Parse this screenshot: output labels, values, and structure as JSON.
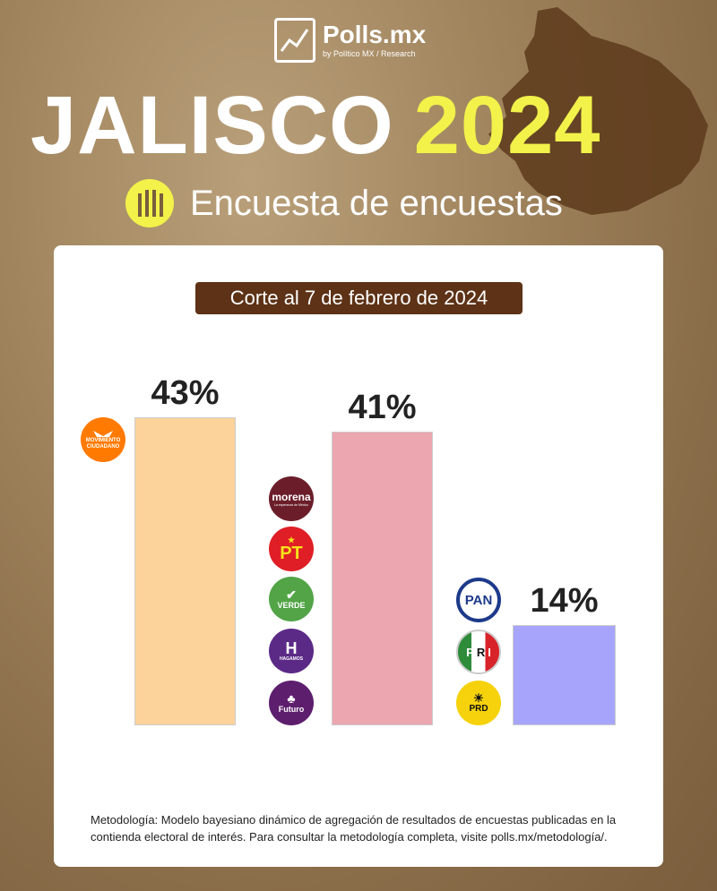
{
  "brand": {
    "name": "Polls.mx",
    "byline": "by Político MX / Research"
  },
  "headline": {
    "region": "JALISCO",
    "year": "2024"
  },
  "subtitle": "Encuesta de encuestas",
  "colors": {
    "accent_yellow": "#f2f24a",
    "pill_brown": "#5d3216",
    "mc_orange": "#ff7a00",
    "morena_maroon": "#6b1e2a",
    "pt_red": "#e01e26",
    "verde_green": "#52a447",
    "hagamos_purple": "#5b2a86",
    "futuro_purple": "#5e1e6e",
    "pan_blue": "#1d3a8a"
  },
  "chart_data": {
    "type": "bar",
    "title": "Corte al 7 de febrero de 2024",
    "categories": [
      "Movimiento Ciudadano",
      "Morena / PT / Verde / Hagamos / Futuro",
      "PAN / PRI / PRD"
    ],
    "values": [
      43,
      41,
      14
    ],
    "value_labels": [
      "43%",
      "41%",
      "14%"
    ],
    "bar_colors": [
      "#fcd39b",
      "#eba6b0",
      "#a7a5fb"
    ],
    "ylim": [
      0,
      43
    ],
    "grid": false,
    "legend": "party logos beside each bar"
  },
  "parties": {
    "mc": {
      "line1": "MOVIMIENTO",
      "line2": "CIUDADANO"
    },
    "morena": {
      "name": "morena",
      "tagline": "La esperanza de México"
    },
    "pt": {
      "name": "PT"
    },
    "verde": {
      "name": "VERDE"
    },
    "hagamos": {
      "name": "H",
      "tagline": "HAGAMOS"
    },
    "futuro": {
      "name": "Futuro"
    },
    "pan": {
      "name": "PAN"
    },
    "pri": {
      "letters": [
        "P",
        "R",
        "I"
      ]
    },
    "prd": {
      "name": "PRD"
    }
  },
  "footnote": "Metodología: Modelo bayesiano dinámico de agregación de resultados de encuestas publicadas en la contienda electoral de interés. Para consultar la metodología completa, visite polls.mx/metodología/."
}
